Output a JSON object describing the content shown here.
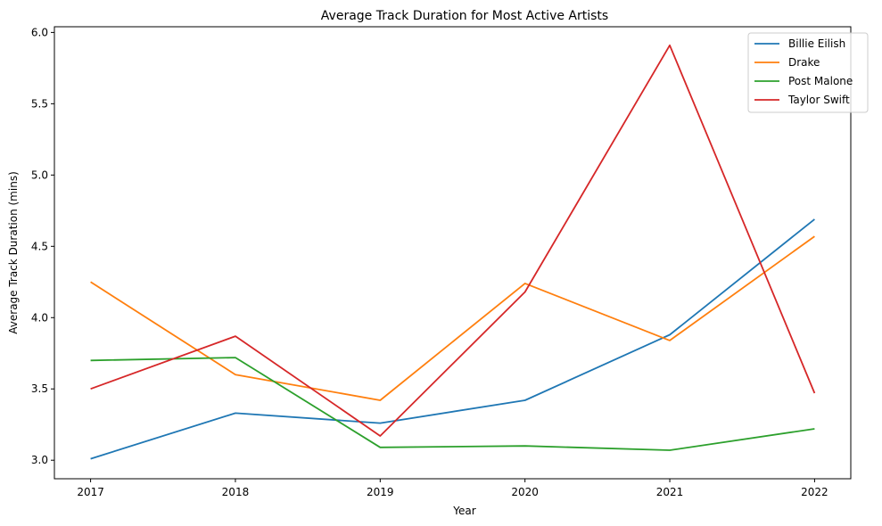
{
  "chart_data": {
    "type": "line",
    "title": "Average Track Duration for Most Active Artists",
    "xlabel": "Year",
    "ylabel": "Average Track Duration (mins)",
    "x": [
      2017,
      2018,
      2019,
      2020,
      2021,
      2022
    ],
    "x_tick_labels": [
      "2017",
      "2018",
      "2019",
      "2020",
      "2021",
      "2022"
    ],
    "y_ticks": [
      3.0,
      3.5,
      4.0,
      4.5,
      5.0,
      5.5,
      6.0
    ],
    "y_tick_labels": [
      "3.0",
      "3.5",
      "4.0",
      "4.5",
      "5.0",
      "5.5",
      "6.0"
    ],
    "xlim": [
      2016.75,
      2022.25
    ],
    "ylim": [
      2.87,
      6.04
    ],
    "grid": false,
    "legend_position": "top-right",
    "series": [
      {
        "name": "Billie Eilish",
        "color": "#1f77b4",
        "values": [
          3.01,
          3.33,
          3.26,
          3.42,
          3.88,
          4.69
        ]
      },
      {
        "name": "Drake",
        "color": "#ff7f0e",
        "values": [
          4.25,
          3.6,
          3.42,
          4.24,
          3.84,
          4.57
        ]
      },
      {
        "name": "Post Malone",
        "color": "#2ca02c",
        "values": [
          3.7,
          3.72,
          3.09,
          3.1,
          3.07,
          3.22
        ]
      },
      {
        "name": "Taylor Swift",
        "color": "#d62728",
        "values": [
          3.5,
          3.87,
          3.17,
          4.18,
          5.91,
          3.47
        ]
      }
    ]
  }
}
